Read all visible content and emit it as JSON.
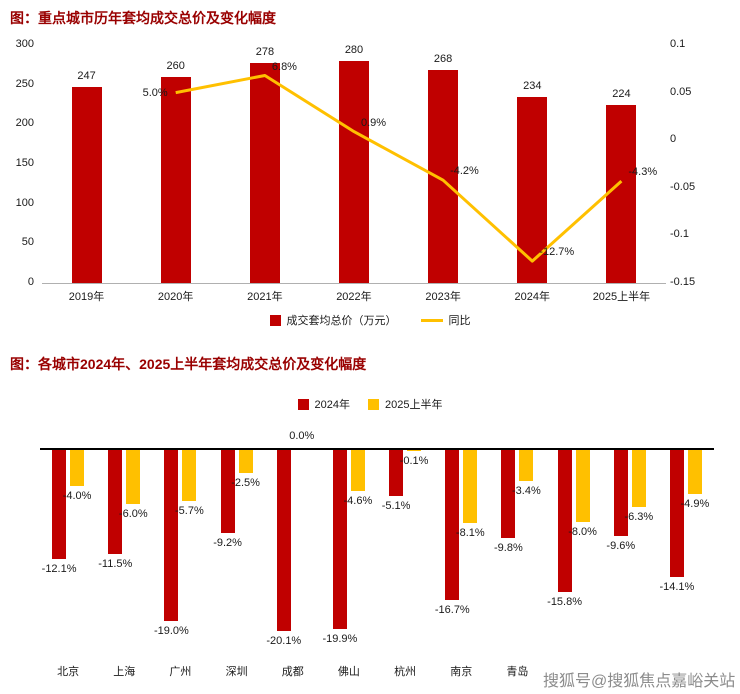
{
  "page": {
    "watermark": "搜狐号@搜狐焦点嘉峪关站"
  },
  "colors": {
    "bar_red": "#C00000",
    "gold": "#FFC000",
    "title_red": "#990000"
  },
  "chart_data": [
    {
      "type": "bar",
      "title": "图：重点城市历年套均成交总价及变化幅度",
      "categories": [
        "2019年",
        "2020年",
        "2021年",
        "2022年",
        "2023年",
        "2024年",
        "2025上半年"
      ],
      "series": [
        {
          "name": "成交套均总价（万元）",
          "kind": "bar",
          "axis": "left",
          "color": "#C00000",
          "values": [
            247,
            260,
            278,
            280,
            268,
            234,
            224
          ],
          "labels": [
            "247",
            "260",
            "278",
            "280",
            "268",
            "234",
            "224"
          ]
        },
        {
          "name": "同比",
          "kind": "line",
          "axis": "right",
          "color": "#FFC000",
          "values": [
            null,
            0.05,
            0.068,
            0.009,
            -0.042,
            -0.127,
            -0.043
          ],
          "labels": [
            null,
            "5.0%",
            "6.8%",
            "0.9%",
            "-4.2%",
            "-12.7%",
            "-4.3%"
          ]
        }
      ],
      "left_axis": {
        "min": 0,
        "max": 300,
        "ticks": [
          "300",
          "250",
          "200",
          "150",
          "100",
          "50",
          "0"
        ]
      },
      "right_axis": {
        "min": -0.15,
        "max": 0.1,
        "ticks": [
          "0.1",
          "0.05",
          "0",
          "-0.05",
          "-0.1",
          "-0.15"
        ]
      },
      "grid": false,
      "legend_position": "bottom"
    },
    {
      "type": "bar",
      "title": "图：各城市2024年、2025上半年套均成交总价及变化幅度",
      "categories": [
        "北京",
        "上海",
        "广州",
        "深圳",
        "成都",
        "佛山",
        "杭州",
        "南京",
        "青岛",
        "",
        "",
        ""
      ],
      "series": [
        {
          "name": "2024年",
          "kind": "bar",
          "color": "#C00000",
          "values": [
            -12.1,
            -11.5,
            -19.0,
            -9.2,
            -20.1,
            -19.9,
            -5.1,
            -16.7,
            -9.8,
            -15.8,
            -9.6,
            -14.1
          ],
          "labels": [
            "-12.1%",
            "-11.5%",
            "-19.0%",
            "-9.2%",
            "-20.1%",
            "-19.9%",
            "-5.1%",
            "-16.7%",
            "-9.8%",
            "-15.8%",
            "-9.6%",
            "-14.1%"
          ]
        },
        {
          "name": "2025上半年",
          "kind": "bar",
          "color": "#FFC000",
          "values": [
            -4.0,
            -6.0,
            -5.7,
            -2.5,
            0.0,
            -4.6,
            -0.1,
            -8.1,
            -3.4,
            -8.0,
            -6.3,
            -4.9
          ],
          "labels": [
            "-4.0%",
            "-6.0%",
            "-5.7%",
            "-2.5%",
            "0.0%",
            "-4.6%",
            "-0.1%",
            "-8.1%",
            "-3.4%",
            "-8.0%",
            "-6.3%",
            "-4.9%"
          ]
        }
      ],
      "unit": "%",
      "grid": false,
      "legend_position": "top"
    }
  ]
}
